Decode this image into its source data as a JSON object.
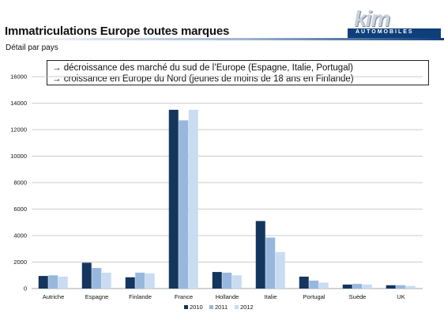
{
  "header": {
    "title": "Immatriculations Europe toutes marques",
    "subtitle": "Détail par pays",
    "logo": {
      "word": "kim",
      "sub": "AUTOMOBILES",
      "bar_color": "#0f3f7a"
    }
  },
  "annotation": {
    "lines": [
      "→ décroissance des marché du sud de l’Europe (Espagne, Italie, Portugal)",
      "→ croissance en Europe du Nord (jeunes de moins de 18 ans en Finlande)"
    ]
  },
  "chart_data": {
    "type": "bar",
    "categories": [
      "Autriche",
      "Espagne",
      "Finlande",
      "France",
      "Hollande",
      "Italie",
      "Portugal",
      "Suède",
      "UK"
    ],
    "series": [
      {
        "name": "2010",
        "color": "#14365e",
        "values": [
          950,
          1950,
          850,
          13500,
          1250,
          5100,
          900,
          300,
          250
        ]
      },
      {
        "name": "2011",
        "color": "#98b7dc",
        "values": [
          1000,
          1550,
          1200,
          12700,
          1200,
          3850,
          600,
          350,
          250
        ]
      },
      {
        "name": "2012",
        "color": "#c9dcf1",
        "values": [
          900,
          1200,
          1150,
          13500,
          1000,
          2750,
          450,
          300,
          200
        ]
      }
    ],
    "ylim": [
      0,
      16000
    ],
    "yticks": [
      "0",
      "2000",
      "4000",
      "6000",
      "8000",
      "10000",
      "12000",
      "14000",
      "16000"
    ],
    "grid": true,
    "legend_position": "bottom"
  }
}
